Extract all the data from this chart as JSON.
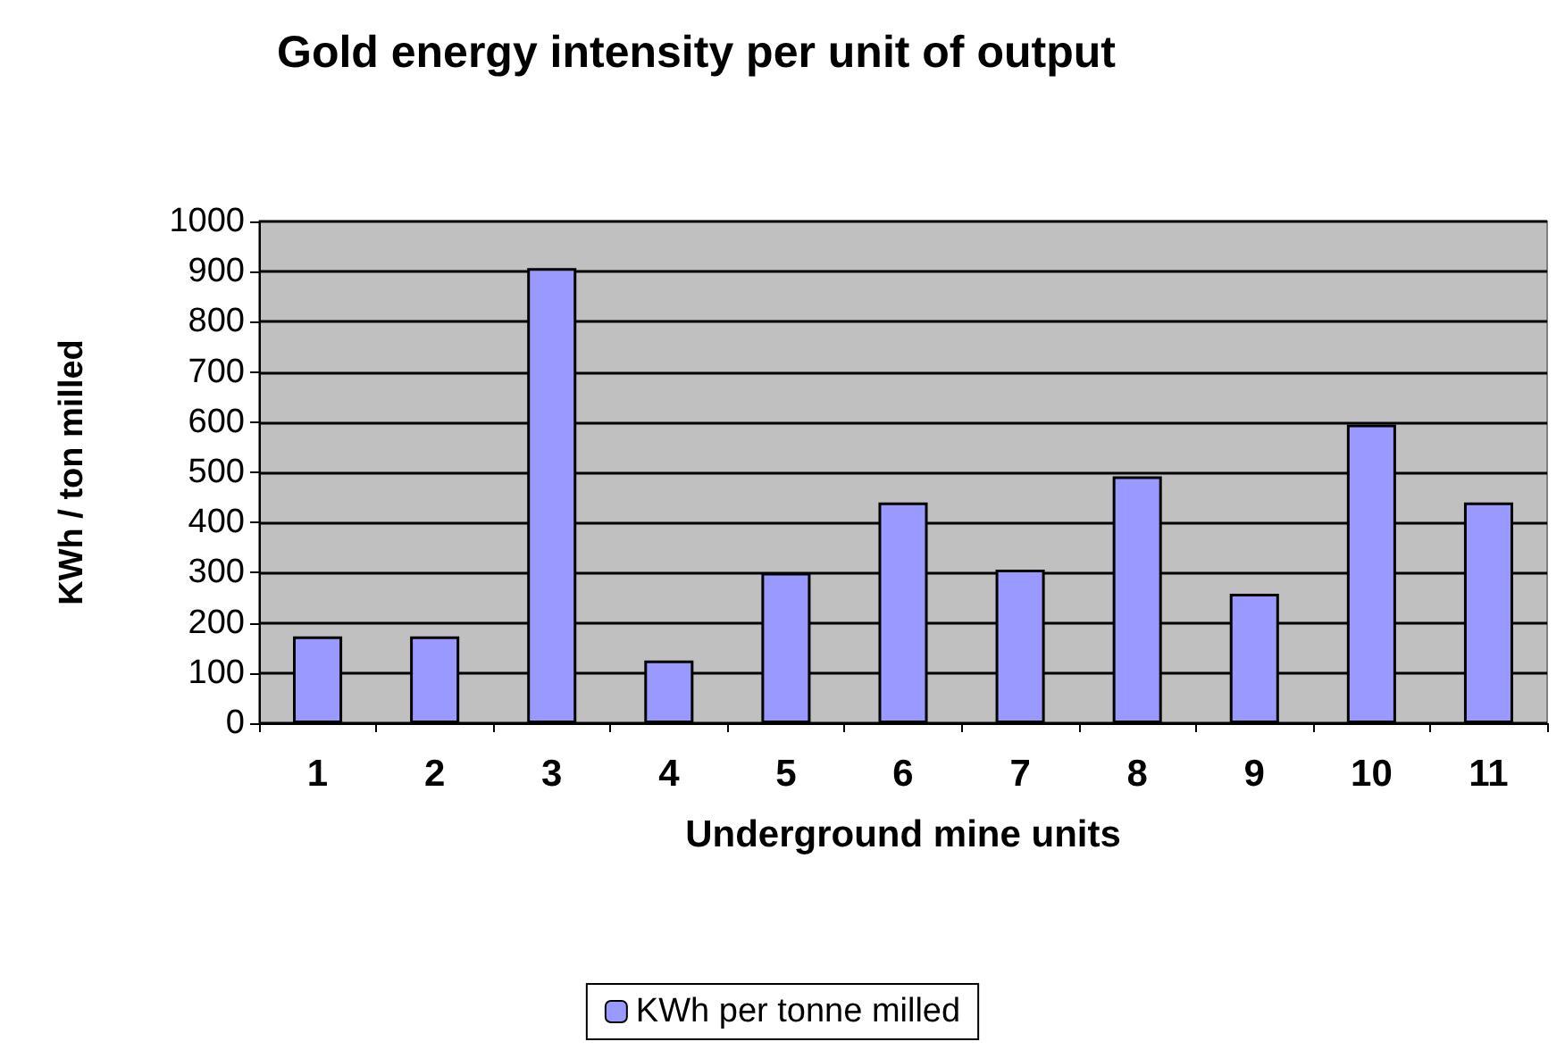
{
  "chart_data": {
    "type": "bar",
    "title": "Gold energy intensity per unit of output",
    "xlabel": "Underground mine units",
    "ylabel": "KWh / ton milled",
    "categories": [
      "1",
      "2",
      "3",
      "4",
      "5",
      "6",
      "7",
      "8",
      "9",
      "10",
      "11"
    ],
    "series": [
      {
        "name": "KWh per tonne milled",
        "color": "#9999ff",
        "values": [
          173,
          173,
          907,
          125,
          300,
          440,
          306,
          492,
          258,
          595,
          440
        ]
      }
    ],
    "ylim": [
      0,
      1000
    ],
    "yticks": [
      0,
      100,
      200,
      300,
      400,
      500,
      600,
      700,
      800,
      900,
      1000
    ],
    "grid": "y",
    "legend": "bottom"
  }
}
